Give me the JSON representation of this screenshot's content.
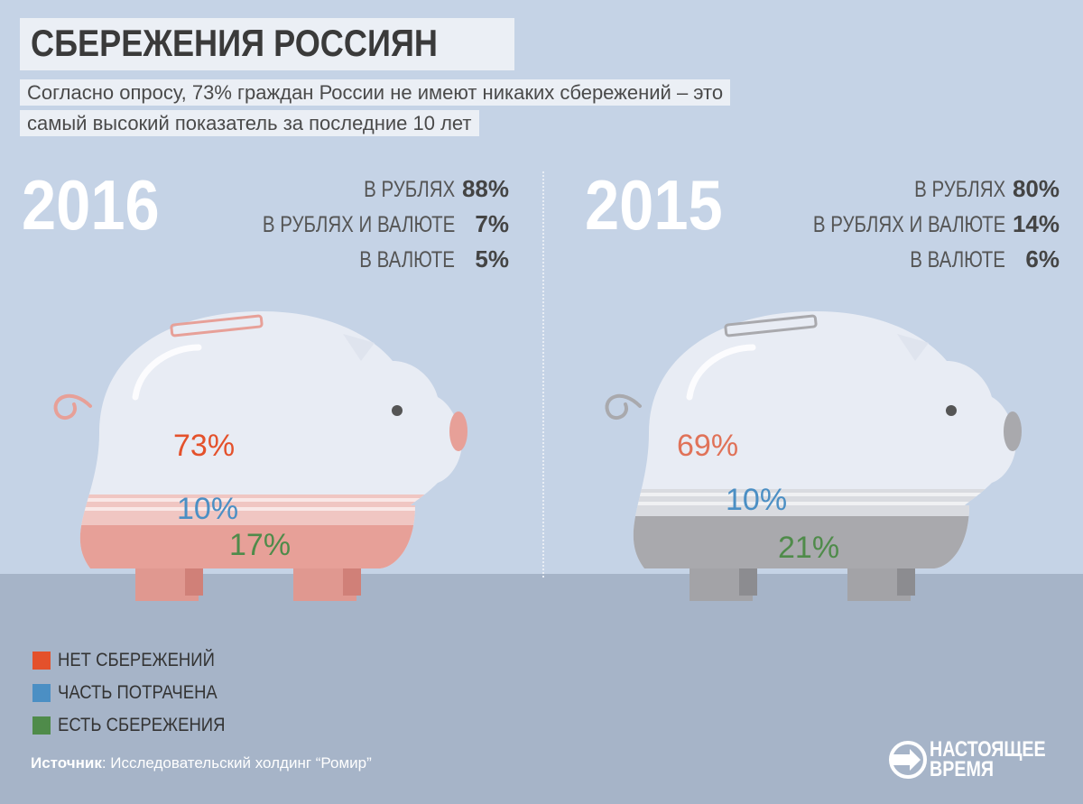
{
  "title": "СБЕРЕЖЕНИЯ РОССИЯН",
  "subtitle_line1": "Согласно опросу, 73% граждан России не имеют никаких сбережений – это",
  "subtitle_line2": "самый высокий показатель за последние 10 лет",
  "colors": {
    "no_savings": "#e4512b",
    "spent_part": "#4b8fc4",
    "has_savings": "#4f8b4a",
    "pig_2016_fill": "#e7a098",
    "pig_2015_fill": "#a9a9ad",
    "background": "#c5d3e6"
  },
  "chart_data": [
    {
      "type": "bar",
      "year": "2016",
      "categories": [
        "НЕТ СБЕРЕЖЕНИЙ",
        "ЧАСТЬ ПОТРАЧЕНА",
        "ЕСТЬ СБЕРЕЖЕНИЯ"
      ],
      "values": [
        73,
        10,
        17
      ],
      "value_labels": [
        "73%",
        "10%",
        "17%"
      ],
      "currency_breakdown": [
        {
          "label": "В РУБЛЯХ",
          "value": "88%"
        },
        {
          "label": "В РУБЛЯХ И ВАЛЮТЕ",
          "value": "7%"
        },
        {
          "label": "В ВАЛЮТЕ",
          "value": "5%"
        }
      ]
    },
    {
      "type": "bar",
      "year": "2015",
      "categories": [
        "НЕТ СБЕРЕЖЕНИЙ",
        "ЧАСТЬ ПОТРАЧЕНА",
        "ЕСТЬ СБЕРЕЖЕНИЯ"
      ],
      "values": [
        69,
        10,
        21
      ],
      "value_labels": [
        "69%",
        "10%",
        "21%"
      ],
      "currency_breakdown": [
        {
          "label": "В РУБЛЯХ",
          "value": "80%"
        },
        {
          "label": "В РУБЛЯХ И ВАЛЮТЕ",
          "value": "14%"
        },
        {
          "label": "В ВАЛЮТЕ",
          "value": "6%"
        }
      ]
    }
  ],
  "legend": [
    {
      "label": "НЕТ СБЕРЕЖЕНИЙ",
      "color": "#e4512b"
    },
    {
      "label": "ЧАСТЬ ПОТРАЧЕНА",
      "color": "#4b8fc4"
    },
    {
      "label": "ЕСТЬ СБЕРЕЖЕНИЯ",
      "color": "#4f8b4a"
    }
  ],
  "source": {
    "label": "Источник",
    "text": ": Исследовательский холдинг “Ромир”"
  },
  "logo": {
    "line1": "НАСТОЯЩЕЕ",
    "line2": "ВРЕМЯ",
    "icon": "play-arrow-circle-icon"
  }
}
